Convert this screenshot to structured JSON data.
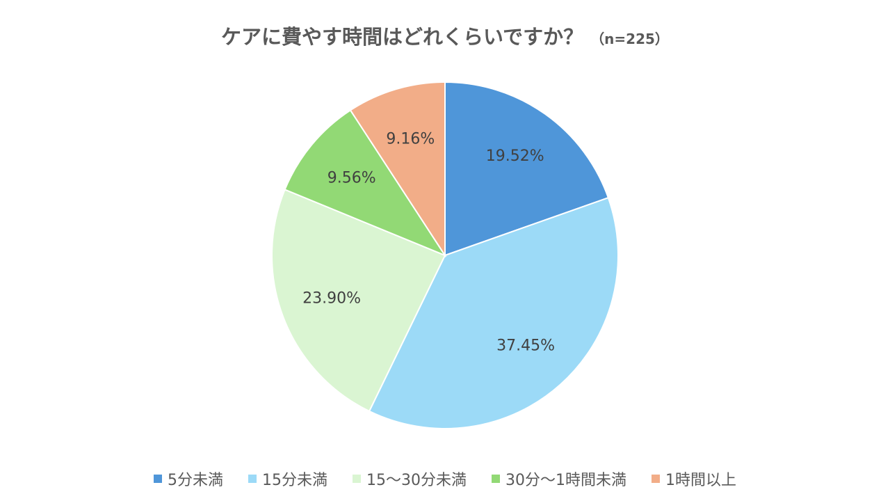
{
  "chart_data": {
    "type": "pie",
    "title": "ケアに費やす時間はどれくらいですか？",
    "subtitle": "（n=225）",
    "slices": [
      {
        "label": "5分未満",
        "value": 19.52,
        "display": "19.52%",
        "color": "#4f96d9"
      },
      {
        "label": "15分未満",
        "value": 37.45,
        "display": "37.45%",
        "color": "#9cdaf7"
      },
      {
        "label": "15～30分未満",
        "value": 23.9,
        "display": "23.90%",
        "color": "#daf5d2"
      },
      {
        "label": "30分～1時間未満",
        "value": 9.56,
        "display": "9.56%",
        "color": "#92d975"
      },
      {
        "label": "1時間以上",
        "value": 9.16,
        "display": "9.16%",
        "color": "#f2ad88"
      }
    ],
    "start_angle": "12 o'clock",
    "direction": "clockwise",
    "legend_position": "bottom"
  }
}
